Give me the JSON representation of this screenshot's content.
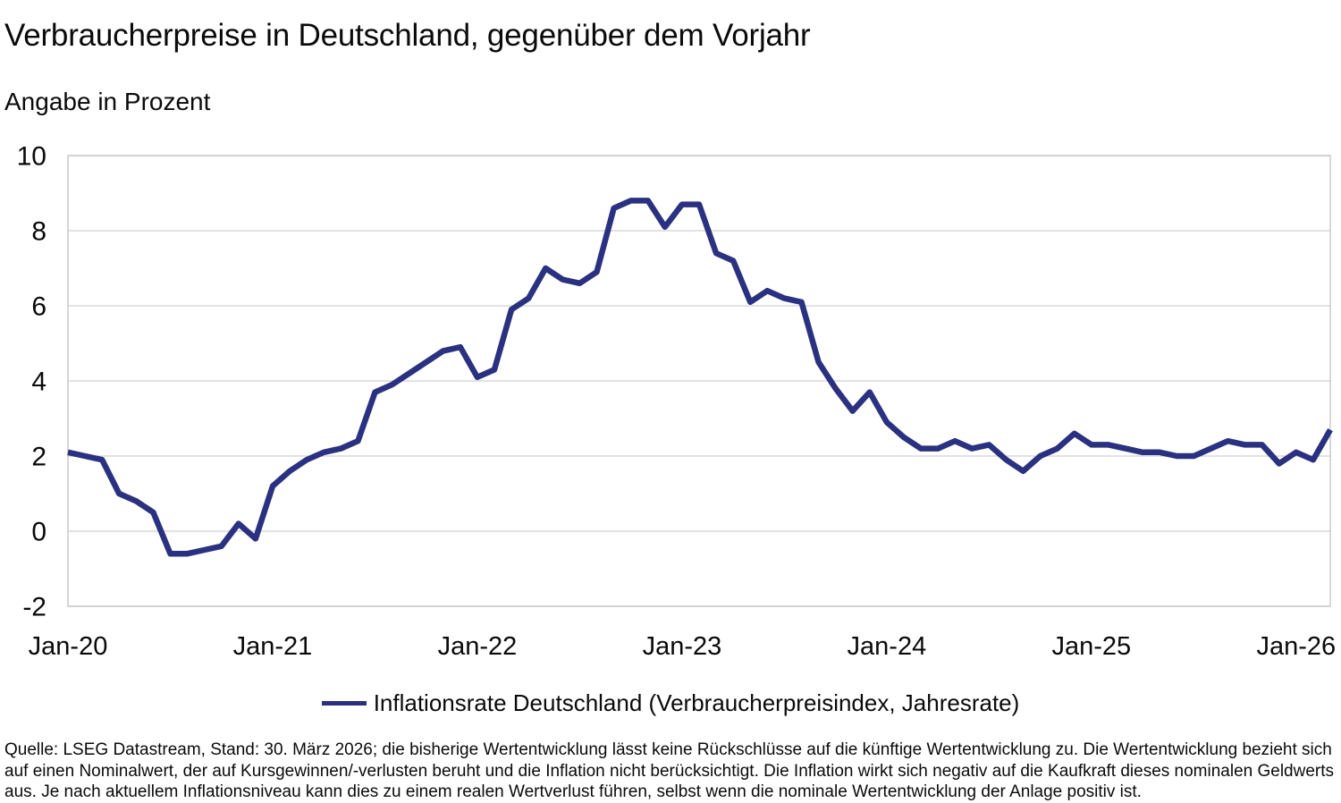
{
  "header": {
    "title": "Verbraucherpreise in Deutschland, gegenüber dem Vorjahr",
    "subtitle": "Angabe in Prozent"
  },
  "legend": {
    "label": "Inflationsrate Deutschland (Verbraucherpreisindex, Jahresrate)"
  },
  "footer": {
    "text": "Quelle: LSEG Datastream, Stand: 30. März 2026; die bisherige Wertentwicklung lässt keine Rückschlüsse auf die künftige Wertentwicklung zu. Die Wertentwicklung bezieht sich auf einen Nominalwert, der auf Kursgewinnen/-verlusten beruht und die Inflation nicht berücksichtigt. Die Inflation wirkt sich negativ auf die Kaufkraft dieses nominalen Geldwerts aus. Je nach aktuellem Inflationsniveau kann dies zu einem realen Wertverlust führen, selbst wenn die nominale Wertentwicklung der Anlage positiv ist."
  },
  "colors": {
    "line": "#2A3180",
    "grid": "#D9D9D9",
    "border": "#C9C9C9",
    "text": "#0a0a0a"
  },
  "chart_data": {
    "type": "line",
    "title": "Verbraucherpreise in Deutschland, gegenüber dem Vorjahr",
    "subtitle": "Angabe in Prozent",
    "xlabel": "",
    "ylabel": "Prozent",
    "ylim": [
      -2,
      10
    ],
    "grid": true,
    "legend_position": "bottom",
    "x_start": "2020-01",
    "x_end": "2026-03",
    "x_ticks": {
      "labels": [
        "Jan-20",
        "Jan-21",
        "Jan-22",
        "Jan-23",
        "Jan-24",
        "Jan-25",
        "Jan-26"
      ],
      "month_indices": [
        0,
        12,
        24,
        36,
        48,
        60,
        72
      ]
    },
    "y_ticks": {
      "labels": [
        "10",
        "8",
        "6",
        "4",
        "2",
        "0",
        "-2"
      ],
      "values": [
        10,
        8,
        6,
        4,
        2,
        0,
        -2
      ]
    },
    "series": [
      {
        "name": "Inflationsrate Deutschland (Verbraucherpreisindex, Jahresrate)",
        "color": "#2A3180",
        "values": [
          2.1,
          2.0,
          1.9,
          1.0,
          0.8,
          0.5,
          -0.6,
          -0.6,
          -0.5,
          -0.4,
          0.2,
          -0.2,
          1.2,
          1.6,
          1.9,
          2.1,
          2.2,
          2.4,
          3.7,
          3.9,
          4.2,
          4.5,
          4.8,
          4.9,
          4.1,
          4.3,
          5.9,
          6.2,
          7.0,
          6.7,
          6.6,
          6.9,
          8.6,
          8.8,
          8.8,
          8.1,
          8.7,
          8.7,
          7.4,
          7.2,
          6.1,
          6.4,
          6.2,
          6.1,
          4.5,
          3.8,
          3.2,
          3.7,
          2.9,
          2.5,
          2.2,
          2.2,
          2.4,
          2.2,
          2.3,
          1.9,
          1.6,
          2.0,
          2.2,
          2.6,
          2.3,
          2.3,
          2.2,
          2.1,
          2.1,
          2.0,
          2.0,
          2.2,
          2.4,
          2.3,
          2.3,
          1.8,
          2.1,
          1.9,
          2.7
        ]
      }
    ]
  }
}
